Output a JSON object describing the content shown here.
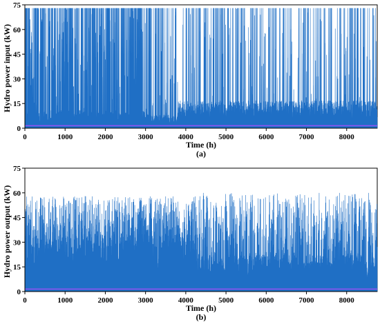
{
  "colors": {
    "series": "#1f6fc5",
    "band": "#b14aff",
    "axis": "#000000",
    "background": "#ffffff"
  },
  "chart_data": [
    {
      "type": "area",
      "panel_label": "(a)",
      "xlabel": "Time (h)",
      "ylabel": "Hydro power input (kW)",
      "xlim": [
        0,
        8760
      ],
      "ylim": [
        0,
        75
      ],
      "xticks": [
        0,
        1000,
        2000,
        3000,
        4000,
        5000,
        6000,
        7000,
        8000
      ],
      "yticks": [
        0,
        15,
        30,
        45,
        60,
        75
      ],
      "grid": false,
      "series_summary": {
        "rated_max": 73,
        "segments": [
          {
            "x": [
              0,
              3000
            ],
            "base": 8,
            "spike_max": 73,
            "spike_prob": 0.55
          },
          {
            "x": [
              3000,
              3800
            ],
            "base": 6,
            "spike_max": 73,
            "spike_prob": 0.35
          },
          {
            "x": [
              3800,
              8760
            ],
            "base": 12,
            "spike_max": 73,
            "spike_prob": 0.22
          }
        ]
      }
    },
    {
      "type": "area",
      "panel_label": "(b)",
      "xlabel": "Time (h)",
      "ylabel": "Hydro power output (kW)",
      "xlim": [
        0,
        8760
      ],
      "ylim": [
        0,
        75
      ],
      "xticks": [
        0,
        1000,
        2000,
        3000,
        4000,
        5000,
        6000,
        7000,
        8000
      ],
      "yticks": [
        0,
        15,
        30,
        45,
        60,
        75
      ],
      "grid": false,
      "series_summary": {
        "rated_max": 60,
        "segments": [
          {
            "x": [
              0,
              4300
            ],
            "base": 25,
            "spike_max": 58,
            "spike_prob": 0.6
          },
          {
            "x": [
              4300,
              8760
            ],
            "base": 16,
            "spike_max": 60,
            "spike_prob": 0.55
          }
        ]
      }
    }
  ]
}
